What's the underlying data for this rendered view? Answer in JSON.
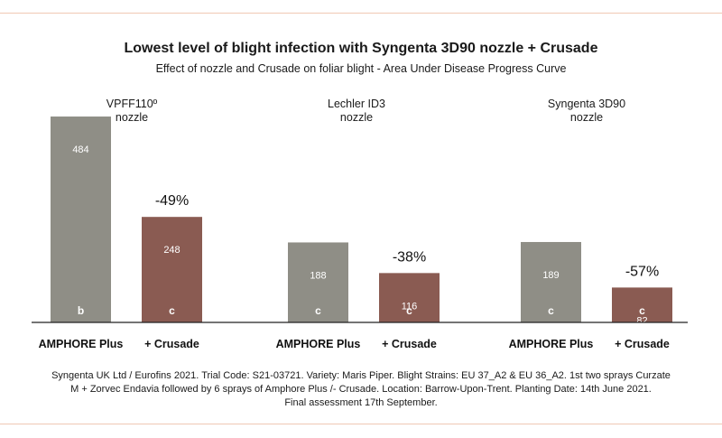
{
  "header": {
    "title": "Lowest level of blight infection with Syngenta 3D90 nozzle + Crusade",
    "subtitle": "Effect of nozzle and Crusade on foliar blight - Area Under Disease Progress Curve"
  },
  "footnote": {
    "line1": "Syngenta UK Ltd / Eurofins 2021. Trial Code:  S21-03721. Variety: Maris Piper.  Blight Strains: EU 37_A2 & EU 36_A2. 1st two sprays Curzate",
    "line2": "M + Zorvec Endavia followed by 6 sprays of Amphore Plus /- Crusade. Location: Barrow-Upon-Trent.  Planting Date: 14th June 2021.",
    "line3": "Final assessment 17th September."
  },
  "chart_data": {
    "type": "bar",
    "title": "Lowest level of blight infection with Syngenta 3D90 nozzle + Crusade",
    "subtitle": "Effect of nozzle and Crusade on foliar blight - Area Under Disease Progress Curve",
    "ylim": [
      0,
      500
    ],
    "grid": false,
    "colors": {
      "amphore": "#8f8e86",
      "crusade": "#8a5b52",
      "axis": "#222222"
    },
    "groups": [
      {
        "label_lines": [
          "VPFF110º",
          "nozzle"
        ],
        "change": "-49%",
        "bars": [
          {
            "category": "AMPHORE Plus",
            "value": 484,
            "value_label": "484",
            "letter": "b"
          },
          {
            "category": "+ Crusade",
            "value": 248,
            "value_label": "248",
            "letter": "c"
          }
        ]
      },
      {
        "label_lines": [
          "Lechler ID3",
          "nozzle"
        ],
        "change": "-38%",
        "bars": [
          {
            "category": "AMPHORE Plus",
            "value": 188,
            "value_label": "188",
            "letter": "c"
          },
          {
            "category": "+ Crusade",
            "value": 116,
            "value_label": "116",
            "letter": "c"
          }
        ]
      },
      {
        "label_lines": [
          "Syngenta 3D90",
          "nozzle"
        ],
        "change": "-57%",
        "bars": [
          {
            "category": "AMPHORE Plus",
            "value": 189,
            "value_label": "189",
            "letter": "c"
          },
          {
            "category": "+ Crusade",
            "value": 82,
            "value_label": "82",
            "letter": "c"
          }
        ]
      }
    ]
  }
}
